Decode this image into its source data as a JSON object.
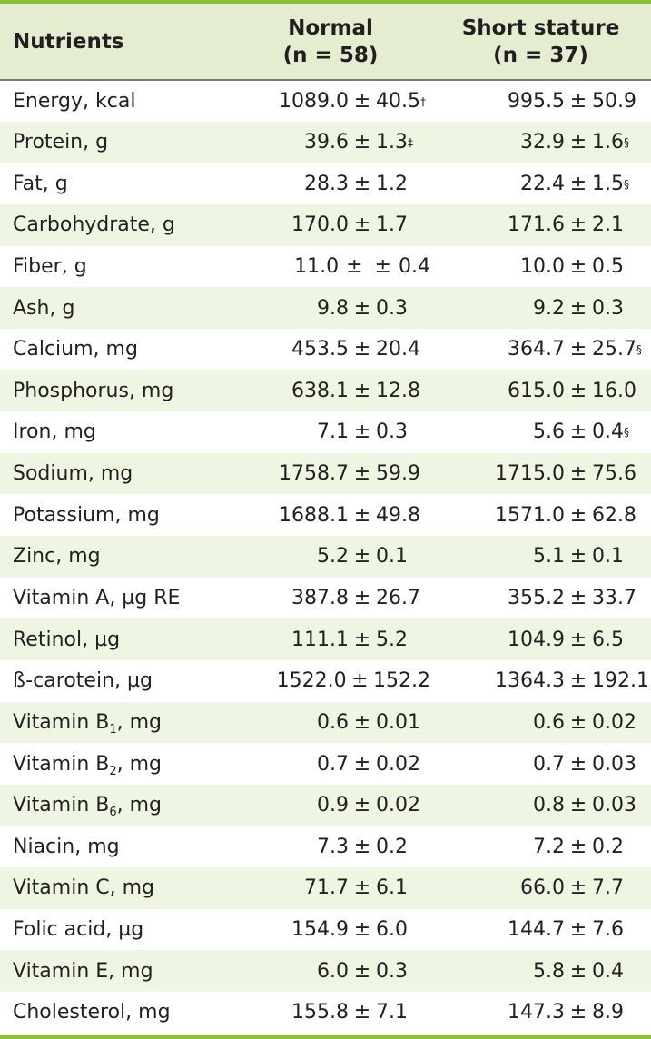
{
  "header": {
    "col1": "Nutrients",
    "col2_line1": "Normal",
    "col2_line2": "(n = 58)",
    "col3_line1": "Short stature",
    "col3_line2": "(n = 37)"
  },
  "pm_symbol": "±",
  "accent_color": "#8cbf3a",
  "rows": [
    {
      "label": "Energy, kcal",
      "label_sub": "",
      "label_after": "",
      "normal_mean": "1089.0",
      "normal_pm": "±",
      "normal_sd": "40.5",
      "normal_mark": "†",
      "short_mean": "995.5",
      "short_sd": "50.9",
      "short_mark": ""
    },
    {
      "label": "Protein, g",
      "label_sub": "",
      "label_after": "",
      "normal_mean": "39.6",
      "normal_pm": "±",
      "normal_sd": "1.3",
      "normal_mark": "‡",
      "short_mean": "32.9",
      "short_sd": "1.6",
      "short_mark": "§"
    },
    {
      "label": "Fat, g",
      "label_sub": "",
      "label_after": "",
      "normal_mean": "28.3",
      "normal_pm": "±",
      "normal_sd": "1.2",
      "normal_mark": "",
      "short_mean": "22.4",
      "short_sd": "1.5",
      "short_mark": "§"
    },
    {
      "label": "Carbohydrate, g",
      "label_sub": "",
      "label_after": "",
      "normal_mean": "170.0",
      "normal_pm": "±",
      "normal_sd": "1.7",
      "normal_mark": "",
      "short_mean": "171.6",
      "short_sd": "2.1",
      "short_mark": ""
    },
    {
      "label": "Fiber, g",
      "label_sub": "",
      "label_after": "",
      "normal_mean": "11.0",
      "normal_pm": "± ±",
      "normal_sd": "0.4",
      "normal_mark": "",
      "short_mean": "10.0",
      "short_sd": "0.5",
      "short_mark": ""
    },
    {
      "label": "Ash, g",
      "label_sub": "",
      "label_after": "",
      "normal_mean": "9.8",
      "normal_pm": "±",
      "normal_sd": "0.3",
      "normal_mark": "",
      "short_mean": "9.2",
      "short_sd": "0.3",
      "short_mark": ""
    },
    {
      "label": "Calcium, mg",
      "label_sub": "",
      "label_after": "",
      "normal_mean": "453.5",
      "normal_pm": "±",
      "normal_sd": "20.4",
      "normal_mark": "",
      "short_mean": "364.7",
      "short_sd": "25.7",
      "short_mark": "§"
    },
    {
      "label": "Phosphorus, mg",
      "label_sub": "",
      "label_after": "",
      "normal_mean": "638.1",
      "normal_pm": "±",
      "normal_sd": "12.8",
      "normal_mark": "",
      "short_mean": "615.0",
      "short_sd": "16.0",
      "short_mark": ""
    },
    {
      "label": "Iron, mg",
      "label_sub": "",
      "label_after": "",
      "normal_mean": "7.1",
      "normal_pm": "±",
      "normal_sd": "0.3",
      "normal_mark": "",
      "short_mean": "5.6",
      "short_sd": "0.4",
      "short_mark": "§"
    },
    {
      "label": "Sodium, mg",
      "label_sub": "",
      "label_after": "",
      "normal_mean": "1758.7",
      "normal_pm": "±",
      "normal_sd": "59.9",
      "normal_mark": "",
      "short_mean": "1715.0",
      "short_sd": "75.6",
      "short_mark": ""
    },
    {
      "label": "Potassium, mg",
      "label_sub": "",
      "label_after": "",
      "normal_mean": "1688.1",
      "normal_pm": "±",
      "normal_sd": "49.8",
      "normal_mark": "",
      "short_mean": "1571.0",
      "short_sd": "62.8",
      "short_mark": ""
    },
    {
      "label": "Zinc, mg",
      "label_sub": "",
      "label_after": "",
      "normal_mean": "5.2",
      "normal_pm": "±",
      "normal_sd": "0.1",
      "normal_mark": "",
      "short_mean": "5.1",
      "short_sd": "0.1",
      "short_mark": ""
    },
    {
      "label": "Vitamin A, µg RE",
      "label_sub": "",
      "label_after": "",
      "normal_mean": "387.8",
      "normal_pm": "±",
      "normal_sd": "26.7",
      "normal_mark": "",
      "short_mean": "355.2",
      "short_sd": "33.7",
      "short_mark": ""
    },
    {
      "label": "Retinol, µg",
      "label_sub": "",
      "label_after": "",
      "normal_mean": "111.1",
      "normal_pm": "±",
      "normal_sd": "5.2",
      "normal_mark": "",
      "short_mean": "104.9",
      "short_sd": "6.5",
      "short_mark": ""
    },
    {
      "label": "ß-carotein, µg",
      "label_sub": "",
      "label_after": "",
      "normal_mean": "1522.0",
      "normal_pm": "±",
      "normal_sd": "152.2",
      "normal_mark": "",
      "short_mean": "1364.3",
      "short_sd": "192.1",
      "short_mark": ""
    },
    {
      "label": "Vitamin B",
      "label_sub": "1",
      "label_after": ", mg",
      "normal_mean": "0.6",
      "normal_pm": "±",
      "normal_sd": "0.01",
      "normal_mark": "",
      "short_mean": "0.6",
      "short_sd": "0.02",
      "short_mark": ""
    },
    {
      "label": "Vitamin B",
      "label_sub": "2",
      "label_after": ", mg",
      "normal_mean": "0.7",
      "normal_pm": "±",
      "normal_sd": "0.02",
      "normal_mark": "",
      "short_mean": "0.7",
      "short_sd": "0.03",
      "short_mark": ""
    },
    {
      "label": "Vitamin B",
      "label_sub": "6",
      "label_after": ", mg",
      "normal_mean": "0.9",
      "normal_pm": "±",
      "normal_sd": "0.02",
      "normal_mark": "",
      "short_mean": "0.8",
      "short_sd": "0.03",
      "short_mark": ""
    },
    {
      "label": "Niacin, mg",
      "label_sub": "",
      "label_after": "",
      "normal_mean": "7.3",
      "normal_pm": "±",
      "normal_sd": "0.2",
      "normal_mark": "",
      "short_mean": "7.2",
      "short_sd": "0.2",
      "short_mark": ""
    },
    {
      "label": "Vitamin C, mg",
      "label_sub": "",
      "label_after": "",
      "normal_mean": "71.7",
      "normal_pm": "±",
      "normal_sd": "6.1",
      "normal_mark": "",
      "short_mean": "66.0",
      "short_sd": "7.7",
      "short_mark": ""
    },
    {
      "label": "Folic acid, µg",
      "label_sub": "",
      "label_after": "",
      "normal_mean": "154.9",
      "normal_pm": "±",
      "normal_sd": "6.0",
      "normal_mark": "",
      "short_mean": "144.7",
      "short_sd": "7.6",
      "short_mark": ""
    },
    {
      "label": "Vitamin E, mg",
      "label_sub": "",
      "label_after": "",
      "normal_mean": "6.0",
      "normal_pm": "±",
      "normal_sd": "0.3",
      "normal_mark": "",
      "short_mean": "5.8",
      "short_sd": "0.4",
      "short_mark": ""
    },
    {
      "label": "Cholesterol, mg",
      "label_sub": "",
      "label_after": "",
      "normal_mean": "155.8",
      "normal_pm": "±",
      "normal_sd": "7.1",
      "normal_mark": "",
      "short_mean": "147.3",
      "short_sd": "8.9",
      "short_mark": ""
    }
  ]
}
